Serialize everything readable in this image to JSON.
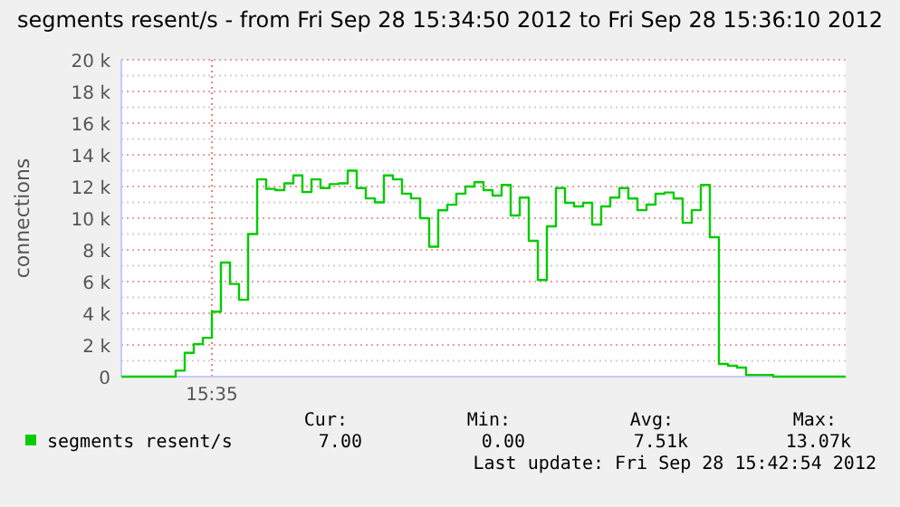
{
  "chart_data": {
    "type": "step",
    "title": "segments resent/s - from Fri Sep 28 15:34:50 2012 to Fri Sep 28 15:36:10 2012",
    "ylabel": "connections",
    "categories": [
      null,
      null,
      null,
      null,
      null,
      null,
      null,
      null,
      null,
      null,
      "15:35",
      null,
      null,
      null,
      null,
      null,
      null,
      null,
      null,
      null,
      null,
      null,
      null,
      null,
      null,
      null,
      null,
      null,
      null,
      null,
      null,
      null,
      null,
      null,
      null,
      null,
      null,
      null,
      null,
      null,
      null,
      null,
      null,
      null,
      null,
      null,
      null,
      null,
      null,
      null,
      null,
      null,
      null,
      null,
      null,
      null,
      null,
      null,
      null,
      null,
      null,
      null,
      null,
      null,
      null,
      null,
      null,
      null,
      null,
      null,
      null,
      null,
      null,
      null,
      null,
      null,
      null,
      null,
      null,
      null,
      null
    ],
    "series": [
      {
        "name": "segments resent/s",
        "color": "#00cc00",
        "values": [
          0,
          0,
          0,
          0,
          0,
          0,
          380,
          1500,
          2050,
          2450,
          4100,
          7200,
          5850,
          4850,
          9000,
          12450,
          11850,
          11770,
          12200,
          12700,
          11650,
          12450,
          11900,
          12150,
          12200,
          13000,
          11900,
          11250,
          11000,
          12700,
          12450,
          11550,
          11250,
          10000,
          8200,
          10500,
          10850,
          11550,
          12000,
          12270,
          11770,
          11430,
          12100,
          10170,
          11300,
          8570,
          6100,
          9490,
          11900,
          10970,
          10740,
          10970,
          9600,
          10740,
          11300,
          11900,
          11240,
          10510,
          10860,
          11540,
          11620,
          11240,
          9710,
          10510,
          12100,
          8800,
          800,
          690,
          570,
          110,
          110,
          110,
          0,
          0,
          0,
          0,
          0,
          0,
          0,
          0,
          0
        ]
      }
    ],
    "ylim": [
      0,
      20000
    ],
    "yticks": [
      {
        "value": 0,
        "label": "0"
      },
      {
        "value": 1000,
        "label": null
      },
      {
        "value": 2000,
        "label": "2 k"
      },
      {
        "value": 3000,
        "label": null
      },
      {
        "value": 4000,
        "label": "4 k"
      },
      {
        "value": 5000,
        "label": null
      },
      {
        "value": 6000,
        "label": "6 k"
      },
      {
        "value": 7000,
        "label": null
      },
      {
        "value": 8000,
        "label": "8 k"
      },
      {
        "value": 9000,
        "label": null
      },
      {
        "value": 10000,
        "label": "10 k"
      },
      {
        "value": 11000,
        "label": null
      },
      {
        "value": 12000,
        "label": "12 k"
      },
      {
        "value": 13000,
        "label": null
      },
      {
        "value": 14000,
        "label": "14 k"
      },
      {
        "value": 15000,
        "label": null
      },
      {
        "value": 16000,
        "label": "16 k"
      },
      {
        "value": 17000,
        "label": null
      },
      {
        "value": 18000,
        "label": "18 k"
      },
      {
        "value": 19000,
        "label": null
      },
      {
        "value": 20000,
        "label": "20 k"
      }
    ],
    "grid": true,
    "legend": "bottom",
    "line_style": "solid",
    "annotations": [
      "Cur:",
      "Min:",
      "Avg:",
      "Max:",
      "7.00",
      "0.00",
      "7.51k",
      "13.07k",
      "Last update: Fri Sep 28 15:42:54 2012"
    ]
  }
}
